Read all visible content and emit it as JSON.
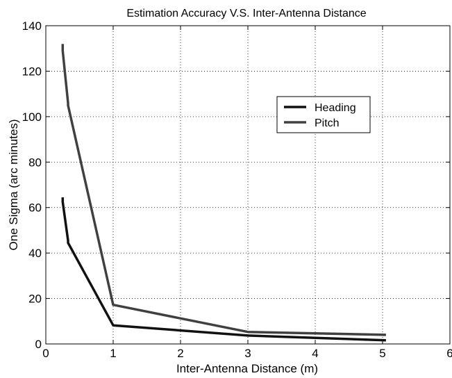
{
  "chart_data": {
    "type": "line",
    "title": "Estimation Accuracy V.S. Inter-Antenna Distance",
    "xlabel": "Inter-Antenna Distance (m)",
    "ylabel": "One Sigma (arc minutes)",
    "xlim": [
      0,
      6
    ],
    "ylim": [
      0,
      140
    ],
    "xticks": [
      0,
      1,
      2,
      3,
      4,
      5,
      6
    ],
    "yticks": [
      0,
      20,
      40,
      60,
      80,
      100,
      120,
      140
    ],
    "grid": true,
    "legend_position": "upper-right",
    "series": [
      {
        "name": "Heading",
        "color": "#111111",
        "x": [
          0.25,
          0.25,
          0.33,
          0.33,
          1.0,
          3.0,
          5.05
        ],
        "y": [
          64.5,
          62.5,
          45.5,
          44.5,
          8.2,
          3.7,
          1.6
        ]
      },
      {
        "name": "Pitch",
        "color": "#404040",
        "x": [
          0.25,
          0.25,
          0.33,
          0.33,
          1.0,
          3.0,
          5.05
        ],
        "y": [
          132,
          129,
          106,
          105,
          17.2,
          5.3,
          4.0
        ]
      }
    ]
  }
}
